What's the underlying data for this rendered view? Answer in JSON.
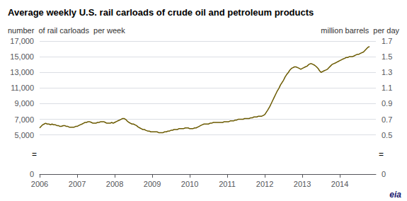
{
  "chart_data": {
    "type": "line",
    "title": "Average weekly U.S. rail carloads of crude oil and petroleum products",
    "ylabel": "number  of rail carloads  per week",
    "y2label": "million barrels  per day",
    "annotations": [
      "=",
      "=",
      "eia"
    ],
    "color": "#6b5a00",
    "grid": true,
    "xlim": [
      2006,
      2014.96
    ],
    "xticks": [
      2006,
      2007,
      2008,
      2009,
      2010,
      2011,
      2012,
      2013,
      2014
    ],
    "ylim": [
      0,
      17000
    ],
    "yticks": [
      0,
      {
        "value": 5000,
        "label": "5,000"
      },
      {
        "value": 7000,
        "label": "7,000"
      },
      {
        "value": 9000,
        "label": "9,000"
      },
      {
        "value": 11000,
        "label": "11,000"
      },
      {
        "value": 13000,
        "label": "13,000"
      },
      {
        "value": 15000,
        "label": "15,000"
      },
      {
        "value": 17000,
        "label": "17,000"
      }
    ],
    "y2lim": [
      0,
      1.7
    ],
    "y2ticks": [
      0,
      0.5,
      0.7,
      0.9,
      1.1,
      1.3,
      1.5,
      1.7
    ],
    "x": [
      2006.0,
      2006.04,
      2006.08,
      2006.12,
      2006.16,
      2006.2,
      2006.25,
      2006.29,
      2006.33,
      2006.37,
      2006.42,
      2006.46,
      2006.5,
      2006.54,
      2006.58,
      2006.63,
      2006.67,
      2006.71,
      2006.75,
      2006.79,
      2006.83,
      2006.88,
      2006.92,
      2006.96,
      2007.0,
      2007.04,
      2007.08,
      2007.13,
      2007.17,
      2007.21,
      2007.25,
      2007.29,
      2007.33,
      2007.38,
      2007.42,
      2007.46,
      2007.5,
      2007.54,
      2007.58,
      2007.63,
      2007.67,
      2007.71,
      2007.75,
      2007.79,
      2007.83,
      2007.88,
      2007.92,
      2007.96,
      2008.0,
      2008.04,
      2008.08,
      2008.13,
      2008.17,
      2008.21,
      2008.25,
      2008.29,
      2008.33,
      2008.38,
      2008.42,
      2008.46,
      2008.5,
      2008.54,
      2008.58,
      2008.63,
      2008.67,
      2008.71,
      2008.75,
      2008.79,
      2008.83,
      2008.88,
      2008.92,
      2008.96,
      2009.0,
      2009.04,
      2009.08,
      2009.13,
      2009.17,
      2009.21,
      2009.25,
      2009.29,
      2009.33,
      2009.38,
      2009.42,
      2009.46,
      2009.5,
      2009.54,
      2009.58,
      2009.63,
      2009.67,
      2009.71,
      2009.75,
      2009.79,
      2009.83,
      2009.88,
      2009.92,
      2009.96,
      2010.0,
      2010.04,
      2010.08,
      2010.13,
      2010.17,
      2010.21,
      2010.25,
      2010.29,
      2010.33,
      2010.38,
      2010.42,
      2010.46,
      2010.5,
      2010.54,
      2010.58,
      2010.63,
      2010.67,
      2010.71,
      2010.75,
      2010.79,
      2010.83,
      2010.88,
      2010.92,
      2010.96,
      2011.0,
      2011.04,
      2011.08,
      2011.13,
      2011.17,
      2011.21,
      2011.25,
      2011.29,
      2011.33,
      2011.38,
      2011.42,
      2011.46,
      2011.5,
      2011.54,
      2011.58,
      2011.63,
      2011.67,
      2011.71,
      2011.75,
      2011.79,
      2011.83,
      2011.88,
      2011.92,
      2011.96,
      2012.0,
      2012.04,
      2012.08,
      2012.13,
      2012.17,
      2012.21,
      2012.25,
      2012.29,
      2012.33,
      2012.38,
      2012.42,
      2012.46,
      2012.5,
      2012.54,
      2012.58,
      2012.63,
      2012.67,
      2012.71,
      2012.75,
      2012.79,
      2012.83,
      2012.88,
      2012.92,
      2012.96,
      2013.0,
      2013.04,
      2013.08,
      2013.13,
      2013.17,
      2013.21,
      2013.25,
      2013.29,
      2013.33,
      2013.38,
      2013.42,
      2013.46,
      2013.5,
      2013.54,
      2013.58,
      2013.63,
      2013.67,
      2013.71,
      2013.75,
      2013.79,
      2013.83,
      2013.88,
      2013.92,
      2013.96,
      2014.0,
      2014.04,
      2014.08,
      2014.13,
      2014.17,
      2014.21,
      2014.25,
      2014.29,
      2014.33,
      2014.38,
      2014.42,
      2014.46,
      2014.5,
      2014.54,
      2014.58,
      2014.63,
      2014.67,
      2014.71,
      2014.75,
      2014.79
    ],
    "values": [
      5900,
      6100,
      6300,
      6400,
      6500,
      6400,
      6400,
      6300,
      6400,
      6300,
      6300,
      6200,
      6200,
      6100,
      6100,
      6200,
      6200,
      6100,
      6100,
      6000,
      6000,
      6000,
      6000,
      6100,
      6100,
      6200,
      6300,
      6400,
      6500,
      6600,
      6600,
      6700,
      6700,
      6600,
      6500,
      6500,
      6500,
      6600,
      6600,
      6700,
      6700,
      6700,
      6600,
      6500,
      6500,
      6500,
      6600,
      6500,
      6600,
      6700,
      6800,
      6900,
      7000,
      7100,
      7100,
      7000,
      6800,
      6600,
      6500,
      6400,
      6400,
      6300,
      6200,
      6000,
      5900,
      5800,
      5700,
      5700,
      5600,
      5500,
      5500,
      5400,
      5400,
      5400,
      5400,
      5400,
      5300,
      5300,
      5300,
      5300,
      5400,
      5400,
      5500,
      5500,
      5600,
      5600,
      5700,
      5700,
      5700,
      5800,
      5800,
      5800,
      5800,
      5900,
      5900,
      5900,
      5800,
      5800,
      5800,
      5900,
      5900,
      6000,
      6100,
      6200,
      6300,
      6400,
      6400,
      6400,
      6400,
      6500,
      6500,
      6600,
      6600,
      6600,
      6600,
      6600,
      6600,
      6600,
      6700,
      6700,
      6700,
      6700,
      6800,
      6800,
      6800,
      6900,
      6900,
      7000,
      7000,
      7000,
      7000,
      7100,
      7100,
      7100,
      7100,
      7200,
      7200,
      7300,
      7300,
      7300,
      7400,
      7400,
      7400,
      7500,
      7600,
      7900,
      8200,
      8600,
      9000,
      9400,
      9800,
      10200,
      10600,
      11000,
      11400,
      11700,
      12000,
      12400,
      12700,
      13000,
      13300,
      13500,
      13600,
      13700,
      13700,
      13600,
      13500,
      13400,
      13500,
      13600,
      13700,
      13800,
      14000,
      14100,
      14100,
      14000,
      13900,
      13700,
      13500,
      13200,
      13000,
      13100,
      13200,
      13300,
      13400,
      13600,
      13800,
      14000,
      14100,
      14200,
      14300,
      14400,
      14500,
      14600,
      14700,
      14800,
      14900,
      14900,
      15000,
      15000,
      15000,
      15100,
      15200,
      15300,
      15300,
      15400,
      15500,
      15600,
      15800,
      16000,
      16200,
      16300
    ]
  }
}
